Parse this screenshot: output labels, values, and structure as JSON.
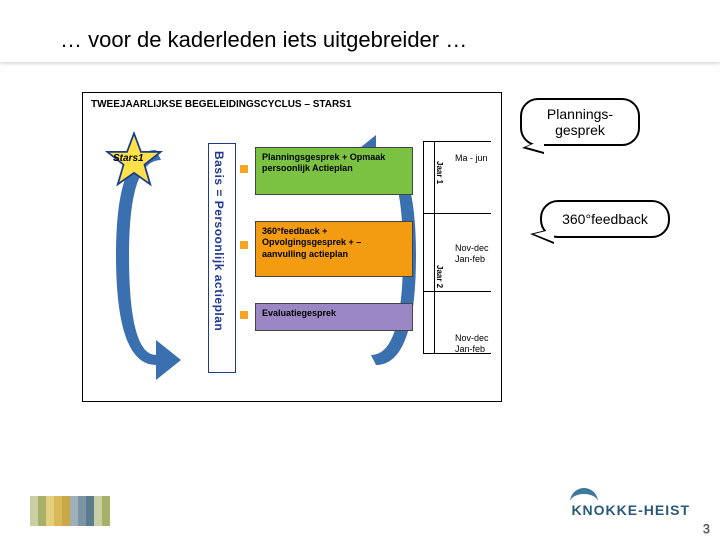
{
  "slide": {
    "title": "… voor de kaderleden iets uitgebreider …",
    "page_number": "3"
  },
  "diagram": {
    "title": "TWEEJAARLIJKSE BEGELEIDINGSCYCLUS – STARS1",
    "star_label": "Stars1",
    "basis_label": "Basis = Persoonlijk actieplan",
    "boxes": {
      "green": {
        "text": "Planningsgesprek + Opmaak persoonlijk Actieplan",
        "bg": "#7cc242"
      },
      "orange": {
        "text": "360°feedback + Opvolgingsgesprek + – aanvulling actieplan",
        "bg": "#f39c12"
      },
      "purple": {
        "text": "Evaluatiegesprek",
        "bg": "#9b87c4"
      }
    },
    "timeline": {
      "jaar1": "Jaar 1",
      "jaar2": "Jaar 2",
      "period1": "Ma - jun",
      "period2": "Nov-dec\nJan-feb",
      "period3": "Nov-dec\nJan-feb"
    },
    "cycle_arrow_color": "#3a6fb0",
    "star_fill": "#ffe24a",
    "star_stroke": "#1a3a8a",
    "basis_border": "#203a8f",
    "dot_color": "#f5a623"
  },
  "callouts": {
    "bubble1": "Plannings-\ngesprek",
    "bubble2": "360°feedback"
  },
  "footer": {
    "logo_text": "KNOKKE-HEIST",
    "logo_color": "#2a5a7a",
    "stripes": [
      "#c9cfa3",
      "#a8b06a",
      "#e4ce80",
      "#d9b957",
      "#caa84a",
      "#9fb0b8",
      "#7a95a4",
      "#5b7c8c",
      "#c9cfa3",
      "#a8b06a"
    ]
  }
}
